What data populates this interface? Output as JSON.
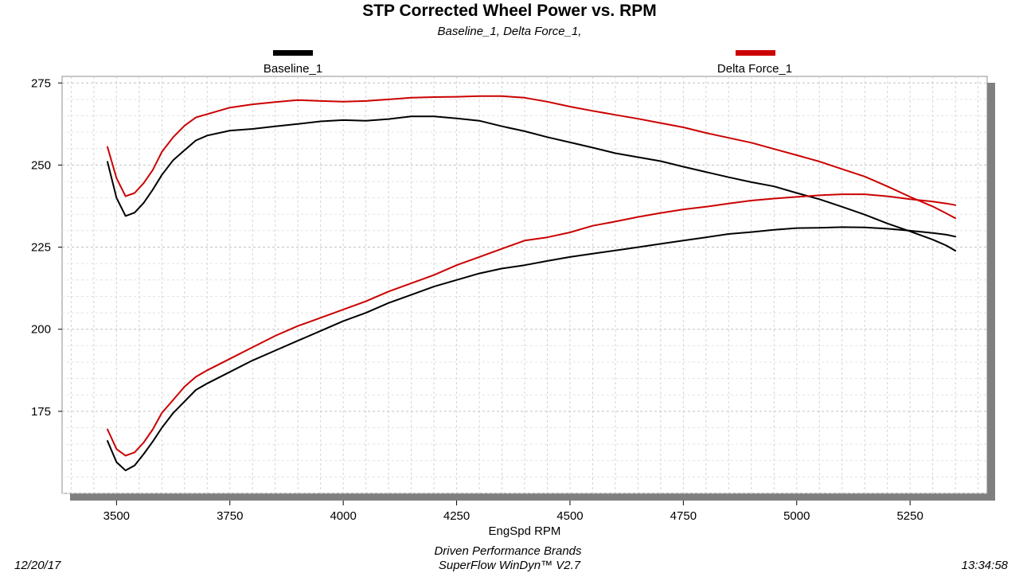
{
  "header": {
    "title": "STP Corrected Wheel Power vs. RPM",
    "subtitle": "Baseline_1, Delta Force_1,"
  },
  "legend": {
    "items": [
      {
        "label": "Baseline_1",
        "color": "#000000"
      },
      {
        "label": "Delta Force_1",
        "color": "#cc0000"
      }
    ]
  },
  "footer": {
    "date": "12/20/17",
    "company": "Driven Performance Brands",
    "software": "SuperFlow WinDyn™  V2.7",
    "time": "13:34:58"
  },
  "colors": {
    "baseline": "#000000",
    "delta": "#cc0000",
    "grid": "#d4d4d4",
    "shadow": "#7f7f7f"
  },
  "chart_data": {
    "type": "line",
    "title": "STP Corrected Wheel Power vs. RPM",
    "xlabel": "EngSpd  RPM",
    "ylabel": "",
    "xlim": [
      3380,
      5420
    ],
    "ylim": [
      150,
      277
    ],
    "xticks": [
      3500,
      3750,
      4000,
      4250,
      4500,
      4750,
      5000,
      5250
    ],
    "yticks": [
      175,
      200,
      225,
      250,
      275
    ],
    "grid": true,
    "legend_position": "top",
    "series": [
      {
        "name": "Baseline_1",
        "color": "#000000",
        "group": "torque",
        "x": [
          3480,
          3500,
          3520,
          3540,
          3560,
          3580,
          3600,
          3625,
          3650,
          3675,
          3700,
          3750,
          3800,
          3850,
          3900,
          3950,
          4000,
          4050,
          4100,
          4150,
          4200,
          4250,
          4300,
          4350,
          4400,
          4450,
          4500,
          4550,
          4600,
          4650,
          4700,
          4750,
          4800,
          4850,
          4900,
          4950,
          5000,
          5050,
          5100,
          5150,
          5200,
          5250,
          5300,
          5330,
          5350
        ],
        "y": [
          251,
          240,
          234.5,
          235.5,
          238.5,
          242.5,
          247,
          251.5,
          254.5,
          257.5,
          259,
          260.5,
          261,
          261.8,
          262.5,
          263.3,
          263.7,
          263.5,
          264,
          264.8,
          264.8,
          264.2,
          263.5,
          261.8,
          260.3,
          258.5,
          256.9,
          255.3,
          253.6,
          252.4,
          251.2,
          249.5,
          247.9,
          246.3,
          244.8,
          243.5,
          241.5,
          239.6,
          237.3,
          234.9,
          232.2,
          229.8,
          227.3,
          225.5,
          223.9
        ]
      },
      {
        "name": "Delta Force_1",
        "color": "#cc0000",
        "group": "torque",
        "x": [
          3480,
          3500,
          3520,
          3540,
          3560,
          3580,
          3600,
          3625,
          3650,
          3675,
          3700,
          3750,
          3800,
          3850,
          3900,
          3950,
          4000,
          4050,
          4100,
          4150,
          4200,
          4250,
          4300,
          4350,
          4400,
          4450,
          4500,
          4550,
          4600,
          4650,
          4700,
          4750,
          4800,
          4850,
          4900,
          4950,
          5000,
          5050,
          5100,
          5150,
          5200,
          5250,
          5300,
          5330,
          5350
        ],
        "y": [
          255.5,
          246,
          240.5,
          241.5,
          244.5,
          248.5,
          254,
          258.5,
          262,
          264.5,
          265.5,
          267.5,
          268.5,
          269.2,
          269.8,
          269.5,
          269.3,
          269.5,
          270,
          270.5,
          270.7,
          270.8,
          271,
          271,
          270.5,
          269.3,
          267.8,
          266.5,
          265.3,
          264.1,
          262.8,
          261.5,
          259.8,
          258.3,
          256.8,
          254.9,
          253,
          251.1,
          248.8,
          246.5,
          243.5,
          240.3,
          237.4,
          235.3,
          233.8
        ]
      },
      {
        "name": "Baseline_1",
        "color": "#000000",
        "group": "power",
        "x": [
          3480,
          3500,
          3520,
          3540,
          3560,
          3580,
          3600,
          3625,
          3650,
          3675,
          3700,
          3750,
          3800,
          3850,
          3900,
          3950,
          4000,
          4050,
          4100,
          4150,
          4200,
          4250,
          4300,
          4350,
          4400,
          4450,
          4500,
          4550,
          4600,
          4650,
          4700,
          4750,
          4800,
          4850,
          4900,
          4950,
          5000,
          5050,
          5100,
          5150,
          5200,
          5250,
          5300,
          5330,
          5350
        ],
        "y": [
          166,
          159.5,
          157,
          158.5,
          162,
          165.8,
          170,
          174.5,
          178,
          181.5,
          183.5,
          187,
          190.5,
          193.5,
          196.5,
          199.5,
          202.5,
          205,
          208,
          210.5,
          213,
          215,
          217,
          218.5,
          219.5,
          220.8,
          222,
          223,
          224,
          225,
          226,
          227,
          228,
          229,
          229.6,
          230.3,
          230.8,
          230.9,
          231.1,
          231,
          230.6,
          230,
          229.3,
          228.8,
          228.2
        ]
      },
      {
        "name": "Delta Force_1",
        "color": "#cc0000",
        "group": "power",
        "x": [
          3480,
          3500,
          3520,
          3540,
          3560,
          3580,
          3600,
          3625,
          3650,
          3675,
          3700,
          3750,
          3800,
          3850,
          3900,
          3950,
          4000,
          4050,
          4100,
          4150,
          4200,
          4250,
          4300,
          4350,
          4400,
          4450,
          4500,
          4550,
          4600,
          4650,
          4700,
          4750,
          4800,
          4850,
          4900,
          4950,
          5000,
          5050,
          5100,
          5150,
          5200,
          5250,
          5300,
          5330,
          5350
        ],
        "y": [
          169.5,
          163.5,
          161.5,
          162.5,
          165.5,
          169.5,
          174.5,
          178.5,
          182.5,
          185.5,
          187.5,
          191,
          194.5,
          198,
          201,
          203.5,
          206,
          208.5,
          211.5,
          214,
          216.5,
          219.5,
          222,
          224.5,
          227,
          228,
          229.5,
          231.5,
          232.8,
          234.2,
          235.4,
          236.5,
          237.3,
          238.3,
          239.2,
          239.8,
          240.3,
          240.8,
          241.1,
          241.1,
          240.5,
          239.6,
          238.9,
          238.3,
          237.8
        ]
      }
    ]
  }
}
